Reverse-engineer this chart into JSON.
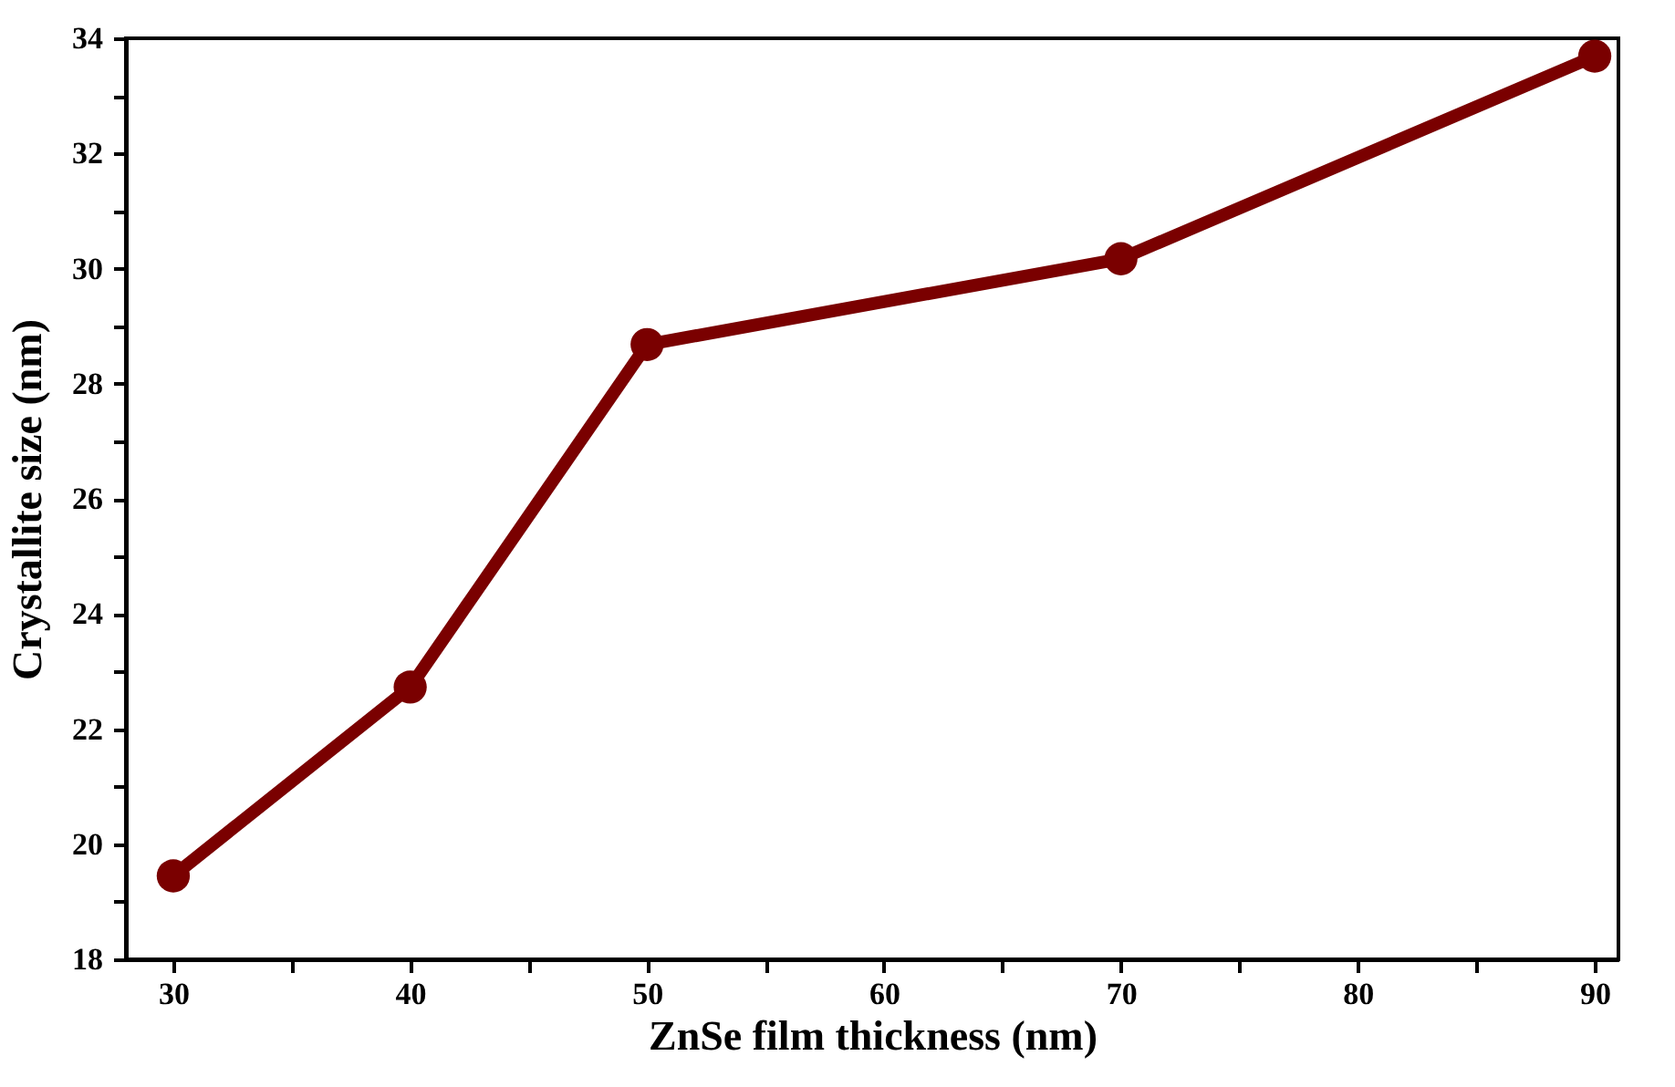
{
  "chart_data": {
    "type": "line",
    "xlabel": "ZnSe film thickness (nm)",
    "ylabel": "Crystallite size (nm)",
    "x": [
      30,
      40,
      50,
      70,
      90
    ],
    "series": [
      {
        "color": "#7a0000",
        "values": [
          19.45,
          22.73,
          28.68,
          30.17,
          33.69
        ]
      }
    ],
    "xlim": [
      28,
      91
    ],
    "ylim": [
      18,
      34
    ],
    "xticks": [
      30,
      {
        "value": 35,
        "label": null
      },
      40,
      {
        "value": 45,
        "label": null
      },
      50,
      {
        "value": 55,
        "label": null
      },
      60,
      {
        "value": 65,
        "label": null
      },
      70,
      {
        "value": 75,
        "label": null
      },
      80,
      {
        "value": 85,
        "label": null
      },
      90
    ],
    "yticks": [
      18,
      {
        "value": 19,
        "label": null
      },
      20,
      {
        "value": 21,
        "label": null
      },
      22,
      {
        "value": 23,
        "label": null
      },
      24,
      {
        "value": 25,
        "label": null
      },
      26,
      {
        "value": 27,
        "label": null
      },
      28,
      {
        "value": 29,
        "label": null
      },
      30,
      {
        "value": 31,
        "label": null
      },
      32,
      {
        "value": 33,
        "label": null
      },
      34
    ],
    "marker": "circle",
    "line_style": "solid",
    "grid": false
  }
}
